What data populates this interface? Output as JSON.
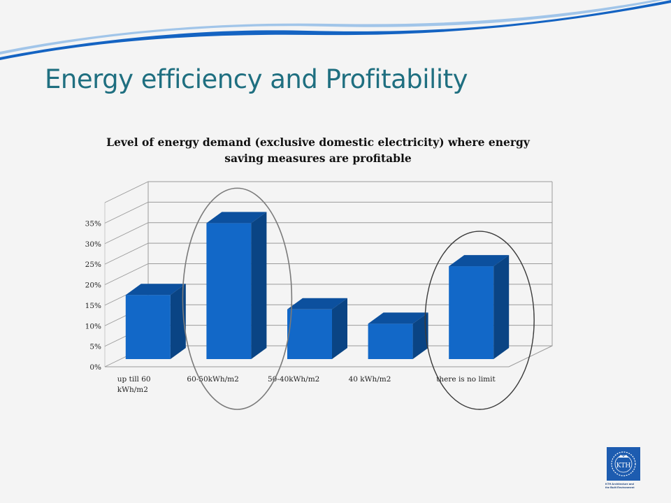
{
  "slide": {
    "title": "Energy efficiency and Profitability"
  },
  "logo": {
    "text": "KTH",
    "caption_line1": "KTH Architecture and",
    "caption_line2": "the Built Environment"
  },
  "colors": {
    "bar_front": "#1268c8",
    "bar_top": "#0c509e",
    "bar_side": "#0a4484",
    "title": "#1f6f80",
    "swoosh": "#1463c2"
  },
  "chart_data": {
    "type": "bar",
    "style": "3d-column",
    "title": "Level of energy demand (exclusive domestic electricity) where energy saving measures are profitable",
    "categories": [
      "up till 60 kWh/m2",
      "60-50kWh/m2",
      "50-40kWh/m2",
      "40 kWh/m2",
      "there is no limit"
    ],
    "category_lines": [
      [
        "up till 60",
        "kWh/m2"
      ],
      [
        "60-50kWh/m2"
      ],
      [
        "50-40kWh/m2"
      ],
      [
        "40 kWh/m2"
      ],
      [
        "there is no limit"
      ]
    ],
    "values": [
      17.5,
      35,
      14,
      10.5,
      24.5
    ],
    "yticks": [
      "0%",
      "5%",
      "10%",
      "15%",
      "20%",
      "25%",
      "30%",
      "35%"
    ],
    "ylim": [
      0,
      40
    ],
    "grid": true,
    "legend": "none",
    "highlighted_categories": [
      "60-50kWh/m2",
      "there is no limit"
    ]
  }
}
